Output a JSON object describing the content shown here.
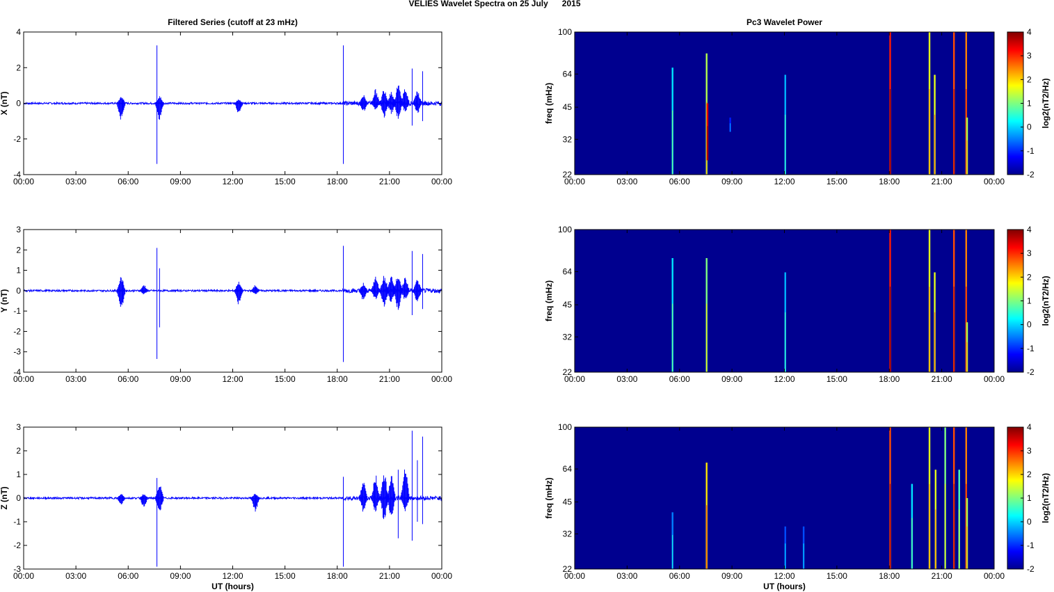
{
  "suptitle": "VELIES Wavelet Spectra on 25 July      2015",
  "colors": {
    "trace": "#0000ff",
    "background": "#00008f",
    "axis": "#000000"
  },
  "chart_data": [
    {
      "type": "line",
      "title": "Filtered Series (cutoff at 23 mHz)",
      "ylabel": "X (nT)",
      "xlabel": "",
      "xticks": [
        "00:00",
        "03:00",
        "06:00",
        "09:00",
        "12:00",
        "15:00",
        "18:00",
        "21:00",
        "00:00"
      ],
      "xlim_hours": [
        0,
        24
      ],
      "ylim": [
        -4,
        4
      ],
      "yticks": [
        "4",
        "2",
        "0",
        "-2",
        "-4"
      ],
      "series": [
        {
          "color": "#0000ff",
          "bursts": [
            [
              5.6,
              -1.0,
              0.45
            ],
            [
              7.65,
              -3.4,
              3.25
            ],
            [
              7.8,
              -1.0,
              0.4
            ],
            [
              12.35,
              -0.6,
              0.25
            ],
            [
              18.35,
              -3.4,
              3.25
            ],
            [
              19.5,
              -0.5,
              0.5
            ],
            [
              20.2,
              -0.4,
              0.8
            ],
            [
              20.7,
              -0.8,
              0.9
            ],
            [
              21.1,
              -0.6,
              0.7
            ],
            [
              21.5,
              -0.9,
              1.1
            ],
            [
              21.9,
              -0.5,
              0.9
            ],
            [
              22.3,
              -1.25,
              1.95
            ],
            [
              22.6,
              -0.6,
              0.8
            ],
            [
              22.9,
              -1.0,
              1.8
            ]
          ]
        }
      ]
    },
    {
      "type": "line",
      "title": "",
      "ylabel": "Y (nT)",
      "xlabel": "",
      "xticks": [
        "00:00",
        "03:00",
        "06:00",
        "09:00",
        "12:00",
        "15:00",
        "18:00",
        "21:00",
        "00:00"
      ],
      "xlim_hours": [
        0,
        24
      ],
      "ylim": [
        -4,
        3
      ],
      "yticks": [
        "3",
        "2",
        "1",
        "0",
        "-1",
        "-2",
        "-3",
        "-4"
      ],
      "series": [
        {
          "color": "#0000ff",
          "bursts": [
            [
              5.6,
              -0.95,
              0.7
            ],
            [
              6.9,
              -0.2,
              0.3
            ],
            [
              7.65,
              -3.35,
              2.1
            ],
            [
              7.8,
              -1.8,
              1.1
            ],
            [
              12.35,
              -0.7,
              0.45
            ],
            [
              13.3,
              -0.2,
              0.3
            ],
            [
              18.35,
              -3.5,
              2.2
            ],
            [
              19.5,
              -0.5,
              0.4
            ],
            [
              20.2,
              -0.5,
              0.7
            ],
            [
              20.7,
              -0.9,
              0.8
            ],
            [
              21.1,
              -0.6,
              0.7
            ],
            [
              21.5,
              -1.0,
              0.9
            ],
            [
              21.9,
              -0.5,
              0.7
            ],
            [
              22.3,
              -1.2,
              1.95
            ],
            [
              22.6,
              -0.6,
              0.6
            ],
            [
              22.9,
              -0.9,
              1.8
            ]
          ]
        }
      ]
    },
    {
      "type": "line",
      "title": "",
      "ylabel": "Z (nT)",
      "xlabel": "UT (hours)",
      "xticks": [
        "00:00",
        "03:00",
        "06:00",
        "09:00",
        "12:00",
        "15:00",
        "18:00",
        "21:00",
        "00:00"
      ],
      "xlim_hours": [
        0,
        24
      ],
      "ylim": [
        -3,
        3
      ],
      "yticks": [
        "3",
        "2",
        "1",
        "0",
        "-1",
        "-2",
        "-3"
      ],
      "series": [
        {
          "color": "#0000ff",
          "bursts": [
            [
              5.6,
              -0.3,
              0.2
            ],
            [
              6.9,
              -0.4,
              0.2
            ],
            [
              7.65,
              -2.9,
              0.85
            ],
            [
              7.8,
              -0.7,
              0.6
            ],
            [
              13.3,
              -0.6,
              0.2
            ],
            [
              18.35,
              -2.9,
              0.9
            ],
            [
              19.5,
              -0.6,
              0.7
            ],
            [
              20.2,
              -0.6,
              1.0
            ],
            [
              20.7,
              -1.0,
              1.1
            ],
            [
              21.1,
              -0.8,
              1.0
            ],
            [
              21.5,
              -1.7,
              1.2
            ],
            [
              21.9,
              -0.6,
              1.5
            ],
            [
              22.3,
              -1.8,
              2.85
            ],
            [
              22.6,
              -1.0,
              1.6
            ],
            [
              22.9,
              -1.1,
              2.6
            ]
          ]
        }
      ]
    },
    {
      "type": "heatmap",
      "title": "Pc3 Wavelet Power",
      "ylabel": "freq (mHz)",
      "xlabel": "",
      "xticks": [
        "00:00",
        "03:00",
        "06:00",
        "09:00",
        "12:00",
        "15:00",
        "18:00",
        "21:00",
        "00:00"
      ],
      "xlim_hours": [
        0,
        24
      ],
      "yticks": [
        "100",
        "64",
        "45",
        "32",
        "22"
      ],
      "ylim_mhz": [
        22,
        100
      ],
      "colorbar": {
        "label": "log2(nT2/Hz)",
        "ticks": [
          "4",
          "3",
          "2",
          "1",
          "0",
          "-1",
          "-2"
        ],
        "range": [
          -2,
          4
        ]
      },
      "streaks": [
        [
          5.6,
          0,
          0.75,
          0.35
        ],
        [
          7.55,
          0,
          0.85,
          0.55
        ],
        [
          7.6,
          0.1,
          0.5,
          0.9
        ],
        [
          8.9,
          0.3,
          0.4,
          0.15
        ],
        [
          12.05,
          0,
          0.7,
          0.3
        ],
        [
          18.05,
          0,
          1.0,
          0.85
        ],
        [
          20.3,
          0,
          1.0,
          0.6
        ],
        [
          20.6,
          0,
          0.7,
          0.6
        ],
        [
          21.7,
          0,
          1.0,
          0.8
        ],
        [
          22.4,
          0,
          1.0,
          0.75
        ],
        [
          22.45,
          0,
          0.4,
          0.55
        ]
      ]
    },
    {
      "type": "heatmap",
      "title": "",
      "ylabel": "freq (mHz)",
      "xlabel": "",
      "xticks": [
        "00:00",
        "03:00",
        "06:00",
        "09:00",
        "12:00",
        "15:00",
        "18:00",
        "21:00",
        "00:00"
      ],
      "xlim_hours": [
        0,
        24
      ],
      "yticks": [
        "100",
        "64",
        "45",
        "32",
        "22"
      ],
      "ylim_mhz": [
        22,
        100
      ],
      "colorbar": {
        "label": "log2(nT2/Hz)",
        "ticks": [
          "4",
          "3",
          "2",
          "1",
          "0",
          "-1",
          "-2"
        ],
        "range": [
          -2,
          4
        ]
      },
      "streaks": [
        [
          5.6,
          0,
          0.8,
          0.35
        ],
        [
          7.55,
          0,
          0.8,
          0.5
        ],
        [
          12.05,
          0,
          0.7,
          0.3
        ],
        [
          18.05,
          0,
          1.0,
          0.85
        ],
        [
          20.3,
          0,
          1.0,
          0.6
        ],
        [
          20.6,
          0,
          0.7,
          0.6
        ],
        [
          21.7,
          0,
          1.0,
          0.8
        ],
        [
          22.4,
          0,
          1.0,
          0.75
        ],
        [
          22.45,
          0,
          0.35,
          0.55
        ]
      ]
    },
    {
      "type": "heatmap",
      "title": "",
      "ylabel": "freq (mHz)",
      "xlabel": "UT (hours)",
      "xticks": [
        "00:00",
        "03:00",
        "06:00",
        "09:00",
        "12:00",
        "15:00",
        "18:00",
        "21:00",
        "00:00"
      ],
      "xlim_hours": [
        0,
        24
      ],
      "yticks": [
        "100",
        "64",
        "45",
        "32",
        "22"
      ],
      "ylim_mhz": [
        22,
        100
      ],
      "colorbar": {
        "label": "log2(nT2/Hz)",
        "ticks": [
          "4",
          "3",
          "2",
          "1",
          "0",
          "-1",
          "-2"
        ],
        "range": [
          -2,
          4
        ]
      },
      "streaks": [
        [
          5.6,
          0,
          0.4,
          0.25
        ],
        [
          7.55,
          0,
          0.75,
          0.65
        ],
        [
          12.05,
          0,
          0.3,
          0.2
        ],
        [
          13.1,
          0,
          0.3,
          0.2
        ],
        [
          18.05,
          0,
          1.0,
          0.8
        ],
        [
          19.3,
          0,
          0.6,
          0.35
        ],
        [
          20.3,
          0,
          1.0,
          0.6
        ],
        [
          20.65,
          0,
          0.7,
          0.6
        ],
        [
          21.2,
          0,
          1.0,
          0.5
        ],
        [
          21.7,
          0,
          1.0,
          0.8
        ],
        [
          22.0,
          0,
          0.7,
          0.45
        ],
        [
          22.4,
          0,
          1.0,
          0.75
        ],
        [
          22.45,
          0,
          0.5,
          0.55
        ]
      ]
    }
  ]
}
